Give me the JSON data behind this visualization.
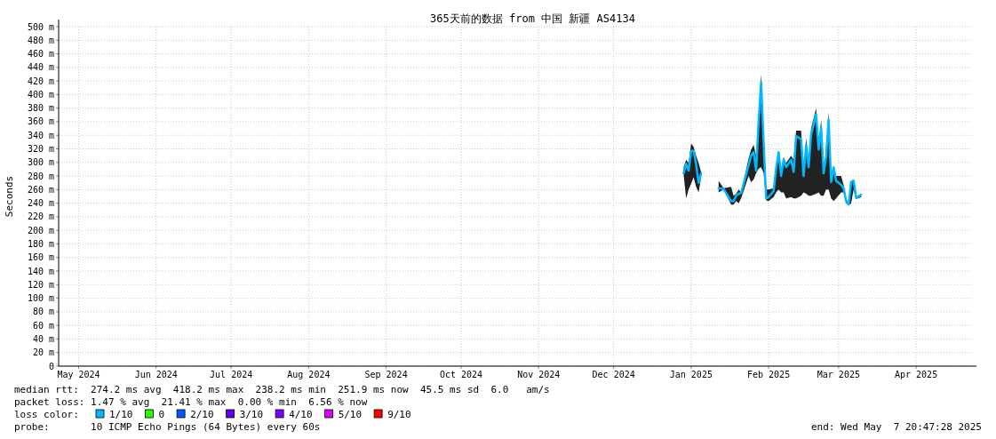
{
  "chart_data": {
    "type": "line",
    "title": "365天前的数据 from 中国 新疆 AS4134",
    "ylabel": "Seconds",
    "legend_title": "loss color:",
    "legend": "bottom",
    "grid": true,
    "xlim": [
      "2024-05-07",
      "2025-05-07"
    ],
    "xticks": [
      {
        "value": "2024-05-15",
        "label": "May 2024"
      },
      {
        "value": "2024-06-15",
        "label": "Jun 2024"
      },
      {
        "value": "2024-07-15",
        "label": "Jul 2024"
      },
      {
        "value": "2024-08-15",
        "label": "Aug 2024"
      },
      {
        "value": "2024-09-15",
        "label": "Sep 2024"
      },
      {
        "value": "2024-10-15",
        "label": "Oct 2024"
      },
      {
        "value": "2024-11-15",
        "label": "Nov 2024"
      },
      {
        "value": "2024-12-15",
        "label": "Dec 2024"
      },
      {
        "value": "2025-01-15",
        "label": "Jan 2025"
      },
      {
        "value": "2025-02-15",
        "label": "Feb 2025"
      },
      {
        "value": "2025-03-15",
        "label": "Mar 2025"
      },
      {
        "value": "2025-04-15",
        "label": "Apr 2025"
      }
    ],
    "ylim": [
      0,
      500
    ],
    "yticks": [
      0,
      {
        "value": 20,
        "label": "20 m"
      },
      {
        "value": 40,
        "label": "40 m"
      },
      {
        "value": 60,
        "label": "60 m"
      },
      {
        "value": 80,
        "label": "80 m"
      },
      {
        "value": 100,
        "label": "100 m"
      },
      {
        "value": 120,
        "label": "120 m"
      },
      {
        "value": 140,
        "label": "140 m"
      },
      {
        "value": 160,
        "label": "160 m"
      },
      {
        "value": 180,
        "label": "180 m"
      },
      {
        "value": 200,
        "label": "200 m"
      },
      {
        "value": 220,
        "label": "220 m"
      },
      {
        "value": 240,
        "label": "240 m"
      },
      {
        "value": 260,
        "label": "260 m"
      },
      {
        "value": 280,
        "label": "280 m"
      },
      {
        "value": 300,
        "label": "300 m"
      },
      {
        "value": 320,
        "label": "320 m"
      },
      {
        "value": 340,
        "label": "340 m"
      },
      {
        "value": 360,
        "label": "360 m"
      },
      {
        "value": 380,
        "label": "380 m"
      },
      {
        "value": 400,
        "label": "400 m"
      },
      {
        "value": 420,
        "label": "420 m"
      },
      {
        "value": 440,
        "label": "440 m"
      },
      {
        "value": 460,
        "label": "460 m"
      },
      {
        "value": 480,
        "label": "480 m"
      },
      {
        "value": 500,
        "label": "500 m"
      }
    ],
    "x": [
      "2025-01-12",
      "2025-01-13",
      "2025-01-14",
      "2025-01-15",
      "2025-01-16",
      "2025-01-17",
      "2025-01-18",
      "2025-01-19",
      "2025-01-26",
      "2025-01-28",
      "2025-01-31",
      "2025-02-01",
      "2025-02-02",
      "2025-02-03",
      "2025-02-04",
      "2025-02-07",
      "2025-02-08",
      "2025-02-09",
      "2025-02-10",
      "2025-02-11",
      "2025-02-12",
      "2025-02-13",
      "2025-02-14",
      "2025-02-15",
      "2025-02-17",
      "2025-02-18",
      "2025-02-19",
      "2025-02-20",
      "2025-02-21",
      "2025-02-22",
      "2025-02-24",
      "2025-02-25",
      "2025-02-26",
      "2025-02-28",
      "2025-03-01",
      "2025-03-02",
      "2025-03-03",
      "2025-03-04",
      "2025-03-06",
      "2025-03-07",
      "2025-03-08",
      "2025-03-09",
      "2025-03-10",
      "2025-03-11",
      "2025-03-12",
      "2025-03-13",
      "2025-03-14",
      "2025-03-16",
      "2025-03-17",
      "2025-03-18",
      "2025-03-19",
      "2025-03-20",
      "2025-03-21",
      "2025-03-22",
      "2025-03-24"
    ],
    "series": [
      {
        "name": "1/10",
        "color": "#00b8ff",
        "values": [
          284,
          298,
          288,
          317,
          317,
          297,
          270,
          284,
          262,
          261,
          243,
          243,
          251,
          254,
          255,
          296,
          310,
          315,
          288,
          361,
          418,
          330,
          247,
          249,
          258,
          291,
          315,
          280,
          304,
          293,
          304,
          286,
          339,
          334,
          280,
          326,
          293,
          341,
          371,
          319,
          352,
          284,
          308,
          363,
          271,
          293,
          273,
          267,
          262,
          243,
          238,
          271,
          273,
          248,
          252
        ],
        "upper": [
          293,
          304,
          299,
          328,
          323,
          310,
          299,
          286,
          273,
          262,
          264,
          251,
          254,
          260,
          256,
          306,
          319,
          326,
          310,
          369,
          430,
          341,
          260,
          260,
          262,
          295,
          317,
          286,
          308,
          299,
          310,
          304,
          347,
          347,
          286,
          336,
          297,
          350,
          380,
          326,
          363,
          290,
          317,
          374,
          275,
          295,
          280,
          280,
          267,
          247,
          240,
          273,
          275,
          249,
          254
        ],
        "lower": [
          282,
          247,
          260,
          269,
          278,
          264,
          256,
          278,
          256,
          260,
          238,
          238,
          243,
          240,
          247,
          280,
          271,
          275,
          284,
          291,
          293,
          284,
          244,
          243,
          249,
          256,
          260,
          256,
          256,
          247,
          249,
          247,
          247,
          251,
          256,
          254,
          251,
          251,
          254,
          256,
          251,
          251,
          260,
          260,
          247,
          243,
          247,
          256,
          256,
          240,
          237,
          240,
          260,
          246,
          249
        ]
      },
      {
        "name": "0",
        "color": "#26ff00",
        "values": [
          null,
          null,
          null,
          null,
          null,
          null,
          null,
          null,
          null,
          null,
          null,
          null,
          null,
          null,
          null,
          null,
          null,
          null,
          null,
          null,
          null,
          null,
          null,
          null,
          null,
          null,
          null,
          null,
          null,
          null,
          null,
          null,
          null,
          null,
          null,
          null,
          null,
          null,
          null,
          null,
          null,
          null,
          null,
          null,
          null,
          null,
          null,
          null,
          null,
          null,
          null,
          null,
          null,
          null,
          null
        ]
      },
      {
        "name": "2/10",
        "color": "#0059ff",
        "values": [
          null,
          null,
          null,
          null,
          null,
          null,
          null,
          null,
          null,
          null,
          null,
          null,
          null,
          null,
          null,
          null,
          null,
          null,
          null,
          null,
          null,
          null,
          null,
          null,
          null,
          null,
          null,
          null,
          null,
          null,
          null,
          null,
          null,
          null,
          null,
          null,
          null,
          null,
          null,
          null,
          null,
          null,
          null,
          null,
          null,
          null,
          null,
          null,
          null,
          null,
          null,
          null,
          null,
          null,
          null
        ]
      },
      {
        "name": "3/10",
        "color": "#5e00ff",
        "values": [
          null,
          null,
          null,
          null,
          null,
          null,
          null,
          null,
          null,
          null,
          null,
          null,
          null,
          null,
          null,
          null,
          null,
          null,
          null,
          null,
          null,
          null,
          null,
          null,
          null,
          null,
          null,
          null,
          null,
          null,
          null,
          null,
          null,
          null,
          null,
          null,
          null,
          null,
          null,
          null,
          null,
          null,
          null,
          null,
          null,
          null,
          null,
          null,
          null,
          null,
          null,
          null,
          null,
          null,
          null
        ]
      },
      {
        "name": "4/10",
        "color": "#7e00ff",
        "values": [
          null,
          null,
          null,
          null,
          null,
          null,
          null,
          null,
          null,
          null,
          null,
          null,
          null,
          null,
          null,
          null,
          null,
          null,
          null,
          null,
          null,
          null,
          null,
          null,
          null,
          null,
          null,
          null,
          null,
          null,
          null,
          null,
          null,
          null,
          null,
          null,
          null,
          null,
          null,
          null,
          null,
          null,
          null,
          null,
          null,
          null,
          null,
          null,
          null,
          null,
          null,
          null,
          null,
          null,
          null
        ]
      },
      {
        "name": "5/10",
        "color": "#dd00ff",
        "values": [
          null,
          null,
          null,
          null,
          null,
          null,
          null,
          null,
          null,
          null,
          null,
          null,
          null,
          null,
          null,
          null,
          null,
          null,
          null,
          null,
          null,
          null,
          null,
          null,
          null,
          null,
          null,
          null,
          null,
          null,
          null,
          null,
          null,
          null,
          null,
          null,
          null,
          null,
          null,
          null,
          null,
          null,
          null,
          null,
          null,
          null,
          null,
          null,
          null,
          null,
          null,
          null,
          null,
          null,
          null
        ]
      },
      {
        "name": "9/10",
        "color": "#ff0000",
        "values": [
          null,
          null,
          null,
          null,
          null,
          null,
          null,
          null,
          null,
          null,
          null,
          null,
          null,
          null,
          null,
          null,
          null,
          null,
          null,
          null,
          null,
          null,
          null,
          null,
          null,
          null,
          null,
          null,
          null,
          null,
          null,
          null,
          null,
          null,
          null,
          null,
          null,
          null,
          null,
          null,
          null,
          null,
          null,
          null,
          null,
          null,
          null,
          null,
          null,
          null,
          null,
          null,
          null,
          null,
          null
        ]
      }
    ],
    "annotations": [
      "median rtt:  274.2 ms avg  418.2 ms max  238.2 ms min  251.9 ms now  45.5 ms sd  6.0   am/s",
      "packet loss: 1.47 % avg  21.41 % max  0.00 % min  6.56 % now",
      "probe:       10 ICMP Echo Pings (64 Bytes) every 60s",
      "end: Wed May  7 20:47:28 2025"
    ]
  }
}
